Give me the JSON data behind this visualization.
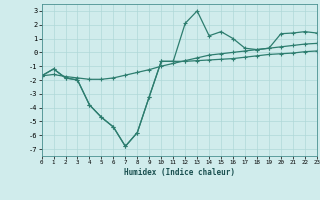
{
  "xlabel": "Humidex (Indice chaleur)",
  "x": [
    0,
    1,
    2,
    3,
    4,
    5,
    6,
    7,
    8,
    9,
    10,
    11,
    12,
    13,
    14,
    15,
    16,
    17,
    18,
    19,
    20,
    21,
    22,
    23
  ],
  "line1": [
    -1.7,
    -1.2,
    -1.85,
    -2.0,
    -3.8,
    -4.7,
    -5.4,
    -6.8,
    -5.8,
    -3.2,
    -0.65,
    -0.65,
    -0.65,
    -0.6,
    -0.55,
    -0.5,
    -0.45,
    -0.35,
    -0.25,
    -0.15,
    -0.1,
    -0.05,
    0.05,
    0.1
  ],
  "line2": [
    -1.7,
    -1.2,
    -1.85,
    -2.0,
    -3.8,
    -4.7,
    -5.4,
    -6.8,
    -5.8,
    -3.2,
    -0.65,
    -0.65,
    2.1,
    3.0,
    1.2,
    1.5,
    1.0,
    0.3,
    0.2,
    0.3,
    1.35,
    1.4,
    1.5,
    1.4
  ],
  "line3": [
    -1.7,
    -1.6,
    -1.75,
    -1.85,
    -1.95,
    -1.95,
    -1.85,
    -1.65,
    -1.45,
    -1.25,
    -1.0,
    -0.8,
    -0.6,
    -0.4,
    -0.2,
    -0.1,
    0.0,
    0.1,
    0.2,
    0.3,
    0.4,
    0.5,
    0.6,
    0.65
  ],
  "color": "#2d7d6f",
  "bg_color": "#d0ecec",
  "grid_color": "#b0d8d8",
  "ylim": [
    -7.5,
    3.5
  ],
  "yticks": [
    -7,
    -6,
    -5,
    -4,
    -3,
    -2,
    -1,
    0,
    1,
    2,
    3
  ],
  "xlim": [
    0,
    23
  ],
  "marker": "+"
}
